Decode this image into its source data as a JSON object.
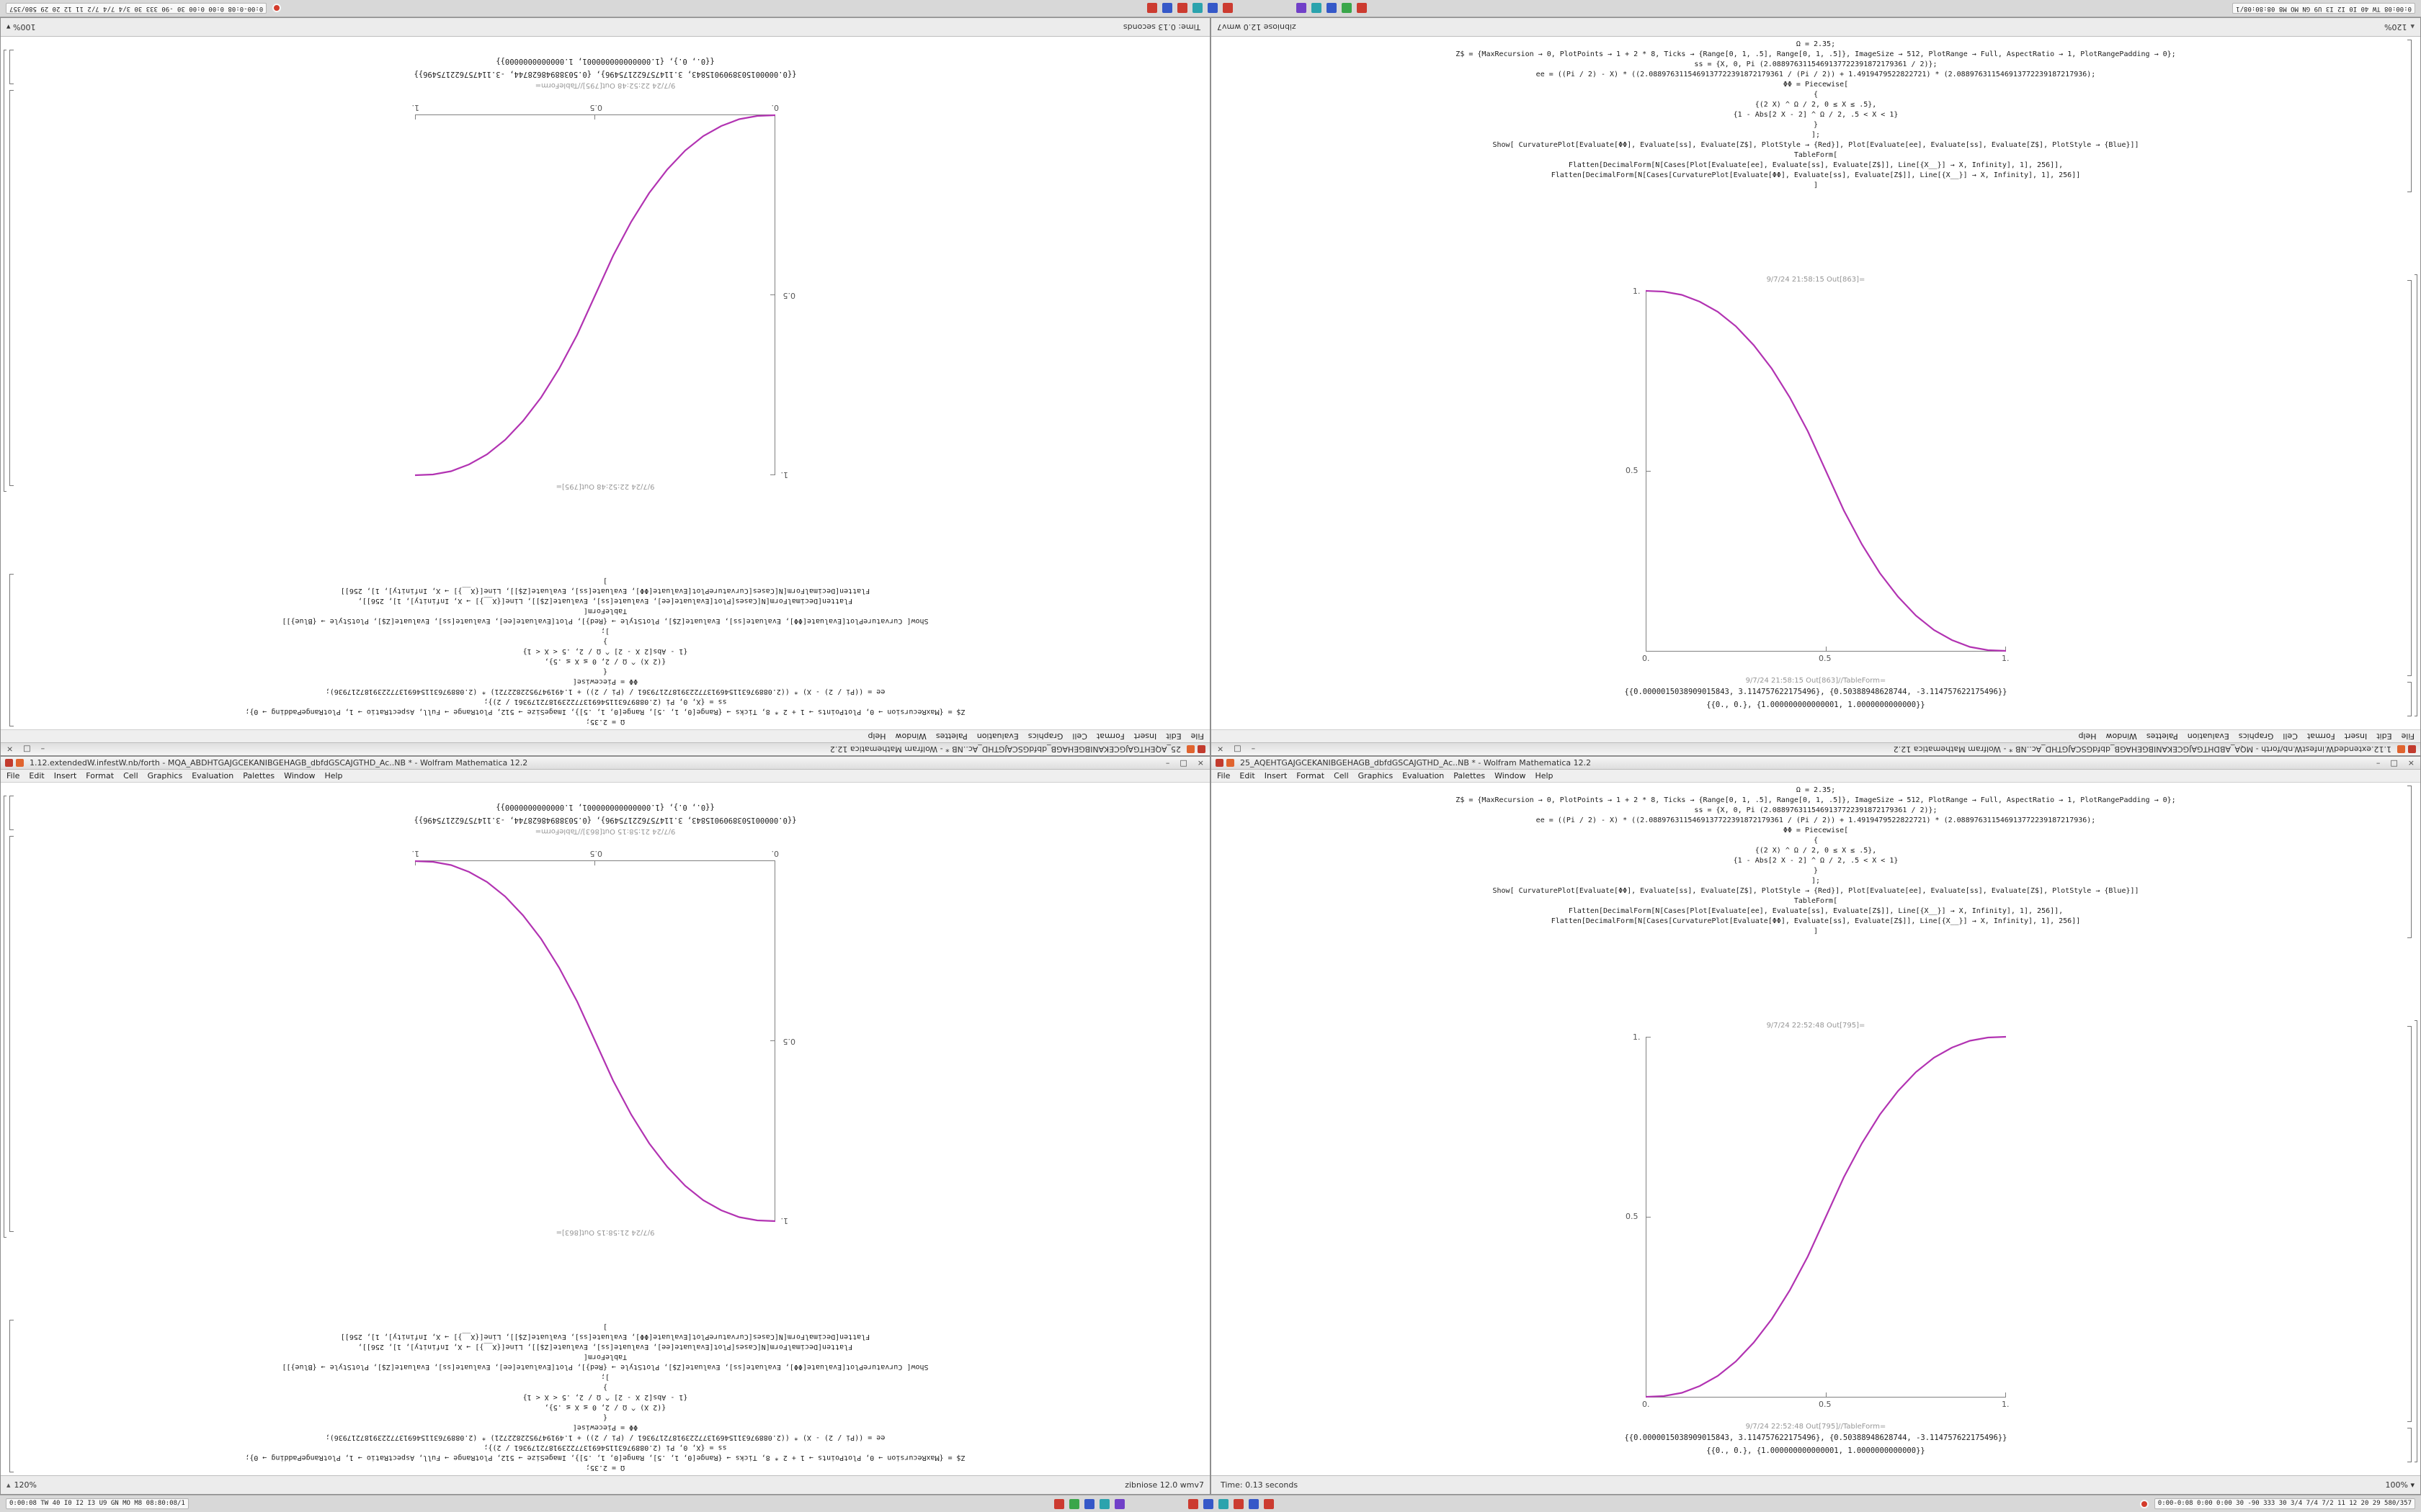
{
  "menu": {
    "items": [
      "File",
      "Edit",
      "Insert",
      "Format",
      "Cell",
      "Graphics",
      "Evaluation",
      "Palettes",
      "Window",
      "Help"
    ]
  },
  "window_buttons": [
    "–",
    "□",
    "×"
  ],
  "windows": [
    {
      "title": "1.12.extendedW.infestW.nb/forth - MQA_ABDHTGAJGCEKANIBGEHAGB_dbfdGSCAJGTHD_Ac..NB * - Wolfram Mathematica 12.2",
      "status_icon": "▴",
      "status_left": "120%",
      "status_right": "zibniose 12.0 wmv7",
      "out_label": "9/7/24 21:58:15 Out[863]=",
      "out_label_tableform": "9/7/24 21:58:15 Out[863]//TableForm=",
      "code": [
        "Ω = 2.35;",
        "Z$ = {MaxRecursion → 0, PlotPoints → 1 + 2 * 8, Ticks → {Range[0, 1, .5], Range[0, 1, .5]}, ImageSize → 512, PlotRange → Full, AspectRatio → 1, PlotRangePadding → 0};",
        "ss = {X, 0, Pi (2.0889763115469137722391872179361 / 2)};",
        "ee = ((Pi / 2) - X) * ((2.0889763115469137722391872179361 / (Pi / 2)) + 1.4919479522822721) * (2.088976311546913772239187217936);",
        "ΦΦ = Piecewise[",
        "{",
        "{(2 X) ^ Ω / 2, 0 ≤ X ≤ .5},",
        "{1 - Abs[2 X - 2] ^ Ω / 2, .5 < X < 1}",
        "}",
        "];",
        "Show[ CurvaturePlot[Evaluate[ΦΦ], Evaluate[ss], Evaluate[Z$], PlotStyle → {Red}], Plot[Evaluate[ee], Evaluate[ss], Evaluate[Z$], PlotStyle → {Blue}]]",
        "TableForm[",
        "Flatten[DecimalForm[N[Cases[Plot[Evaluate[ee], Evaluate[ss], Evaluate[Z$]], Line[{X__}] → X, Infinity], 1], 256]],",
        "Flatten[DecimalForm[N[Cases[CurvaturePlot[Evaluate[ΦΦ], Evaluate[ss], Evaluate[Z$]], Line[{X__}] → X, Infinity], 1], 256]]",
        "]"
      ],
      "table_lines": [
        "{{0.0000015038909015843, 3.114757622175496}, {0.50388948628744, -3.114757622175496}}",
        "{{0., 0.}, {1.000000000000001, 1.0000000000000}}"
      ]
    },
    {
      "title": "25_AQEHTGAJGCEKANIBGEHAGB_dbfdGSCAJGTHD_Ac..NB * - Wolfram Mathematica 12.2",
      "status_icon": "",
      "status_left": "Time: 0.13 seconds",
      "status_right": "100% ▾",
      "out_label": "9/7/24 22:52:48 Out[795]=",
      "out_label_tableform": "9/7/24 22:52:48 Out[795]//TableForm=",
      "code": [
        "Ω = 2.35;",
        "Z$ = {MaxRecursion → 0, PlotPoints → 1 + 2 * 8, Ticks → {Range[0, 1, .5], Range[0, 1, .5]}, ImageSize → 512, PlotRange → Full, AspectRatio → 1, PlotRangePadding → 0};",
        "ss = {X, 0, Pi (2.0889763115469137722391872179361 / 2)};",
        "ee = ((Pi / 2) - X) * ((2.0889763115469137722391872179361 / (Pi / 2)) + 1.4919479522822721) * (2.088976311546913772239187217936);",
        "ΦΦ = Piecewise[",
        "{",
        "{(2 X) ^ Ω / 2, 0 ≤ X ≤ .5},",
        "{1 - Abs[2 X - 2] ^ Ω / 2, .5 < X < 1}",
        "}",
        "];",
        "Show[ CurvaturePlot[Evaluate[ΦΦ], Evaluate[ss], Evaluate[Z$], PlotStyle → {Red}], Plot[Evaluate[ee], Evaluate[ss], Evaluate[Z$], PlotStyle → {Blue}]]",
        "TableForm[",
        "Flatten[DecimalForm[N[Cases[Plot[Evaluate[ee], Evaluate[ss], Evaluate[Z$]], Line[{X__}] → X, Infinity], 1], 256]],",
        "Flatten[DecimalForm[N[Cases[CurvaturePlot[Evaluate[ΦΦ], Evaluate[ss], Evaluate[Z$]], Line[{X__}] → X, Infinity], 1], 256]]",
        "]"
      ],
      "table_lines": [
        "{{0.0000015038909015843, 3.114757622175496}, {0.50388948628744, -3.114757622175496}}",
        "{{0., 0.}, {1.000000000000001, 1.0000000000000}}"
      ]
    }
  ],
  "taskbar": {
    "left_stats": "0:00:08 TW 40 I0 I2 I3 U9 GN MO M8 08:80:08/1",
    "right_stats": "0:00-0:08 0:00 0:00 30 -90 333 30 3/4 7/4 7/2 11 12 20 29 580/357",
    "icon_groups": [
      [
        "#cc3b30",
        "#3aa64a",
        "#3558c8",
        "#2ba3ad",
        "#7140c8"
      ],
      [
        "#cc3b30",
        "#3558c8",
        "#2ba3ad",
        "#cc3b30",
        "#3558c8",
        "#cc3b30"
      ]
    ]
  },
  "chart_data": [
    {
      "type": "line",
      "title": "Out[863] descending S-curve (curvature plot)",
      "xlabel": "",
      "ylabel": "",
      "x": [
        0,
        0.05,
        0.1,
        0.15,
        0.2,
        0.25,
        0.3,
        0.35,
        0.4,
        0.45,
        0.5,
        0.55,
        0.6,
        0.65,
        0.7,
        0.75,
        0.8,
        0.85,
        0.9,
        0.95,
        1
      ],
      "y": [
        1,
        0.998,
        0.989,
        0.97,
        0.942,
        0.902,
        0.849,
        0.784,
        0.704,
        0.61,
        0.5,
        0.39,
        0.296,
        0.216,
        0.151,
        0.098,
        0.058,
        0.03,
        0.011,
        0.002,
        0
      ],
      "xlim": [
        0,
        1
      ],
      "ylim": [
        0,
        1
      ],
      "xtick_labels": [
        "0.",
        "0.5",
        "1."
      ],
      "ytick_labels": [
        "0.5",
        "1."
      ],
      "grid": false,
      "legend": "none",
      "color": "#b233b2"
    },
    {
      "type": "line",
      "title": "Out[795] ascending S-curve (curvature plot)",
      "xlabel": "",
      "ylabel": "",
      "x": [
        0,
        0.05,
        0.1,
        0.15,
        0.2,
        0.25,
        0.3,
        0.35,
        0.4,
        0.45,
        0.5,
        0.55,
        0.6,
        0.65,
        0.7,
        0.75,
        0.8,
        0.85,
        0.9,
        0.95,
        1
      ],
      "y": [
        0,
        0.002,
        0.011,
        0.03,
        0.058,
        0.098,
        0.151,
        0.216,
        0.296,
        0.39,
        0.5,
        0.61,
        0.704,
        0.784,
        0.849,
        0.902,
        0.942,
        0.97,
        0.989,
        0.998,
        1
      ],
      "xlim": [
        0,
        1
      ],
      "ylim": [
        0,
        1
      ],
      "xtick_labels": [
        "0.",
        "0.5",
        "1."
      ],
      "ytick_labels": [
        "0.5",
        "1."
      ],
      "grid": false,
      "legend": "none",
      "color": "#b233b2"
    }
  ]
}
